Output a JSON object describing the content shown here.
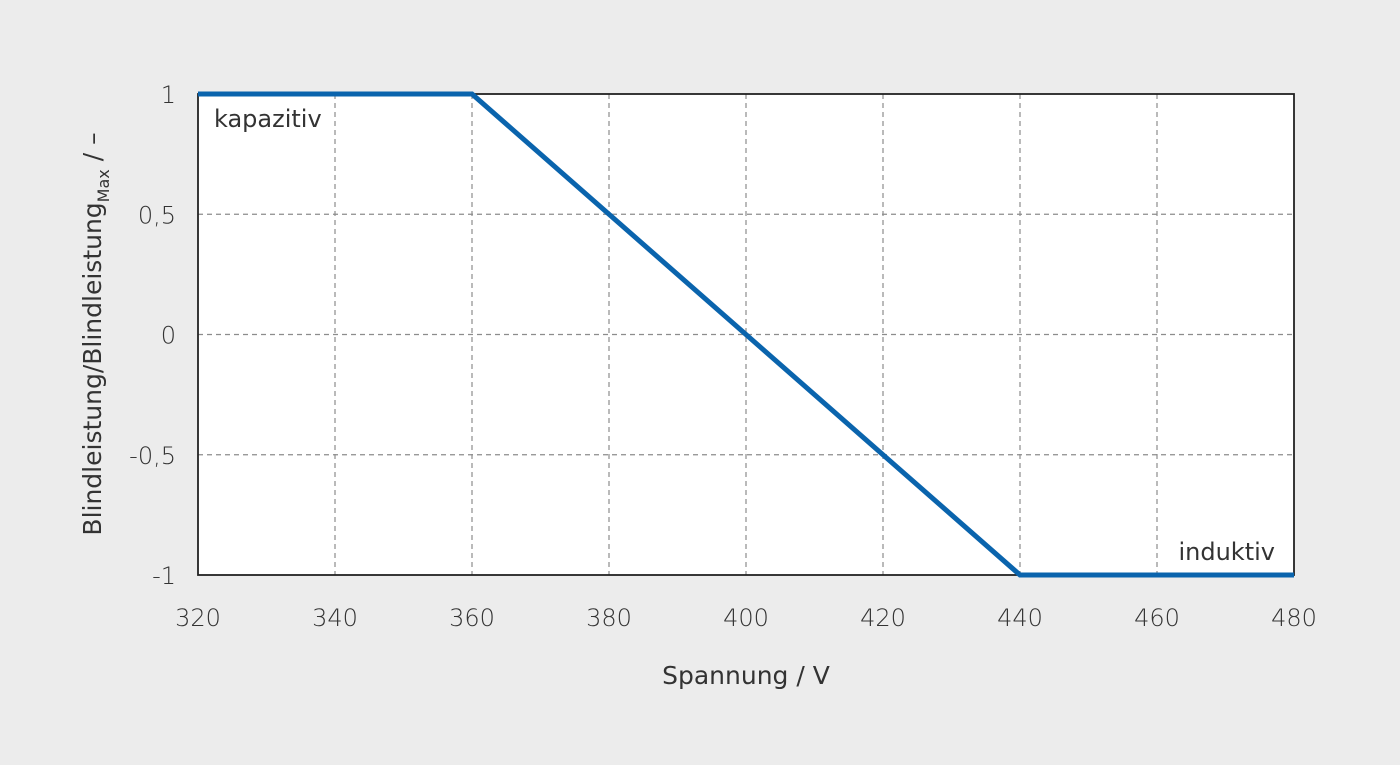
{
  "chart_data": {
    "type": "line",
    "xlabel": "Spannung / V",
    "ylabel": {
      "main": "Blindleistung/Blindleistung",
      "subscript": "Max",
      "suffix": " / –"
    },
    "xlim": [
      320,
      480
    ],
    "ylim": [
      -1,
      1
    ],
    "x_ticks": [
      320,
      340,
      360,
      380,
      400,
      420,
      440,
      460,
      480
    ],
    "x_tick_labels": [
      "320",
      "340",
      "360",
      "380",
      "400",
      "420",
      "440",
      "460",
      "480"
    ],
    "y_ticks": [
      1,
      0.5,
      0,
      -0.5,
      -1
    ],
    "y_tick_labels": [
      "1",
      "0,5",
      "0",
      "-0,5",
      "-1"
    ],
    "grid": true,
    "series": [
      {
        "x": [
          320,
          360,
          440,
          480
        ],
        "y": [
          1,
          1,
          -1,
          -1
        ],
        "color": "#0a64ad"
      }
    ],
    "annotations": [
      {
        "text": "kapazitiv",
        "x": 320,
        "y": 1,
        "placement": "below-right"
      },
      {
        "text": "induktiv",
        "x": 480,
        "y": -1,
        "placement": "above-left"
      }
    ]
  },
  "colors": {
    "background": "#ececec",
    "plot_area": "#ffffff",
    "line": "#0a64ad",
    "grid": "#8c8c8c",
    "text": "#333333"
  }
}
